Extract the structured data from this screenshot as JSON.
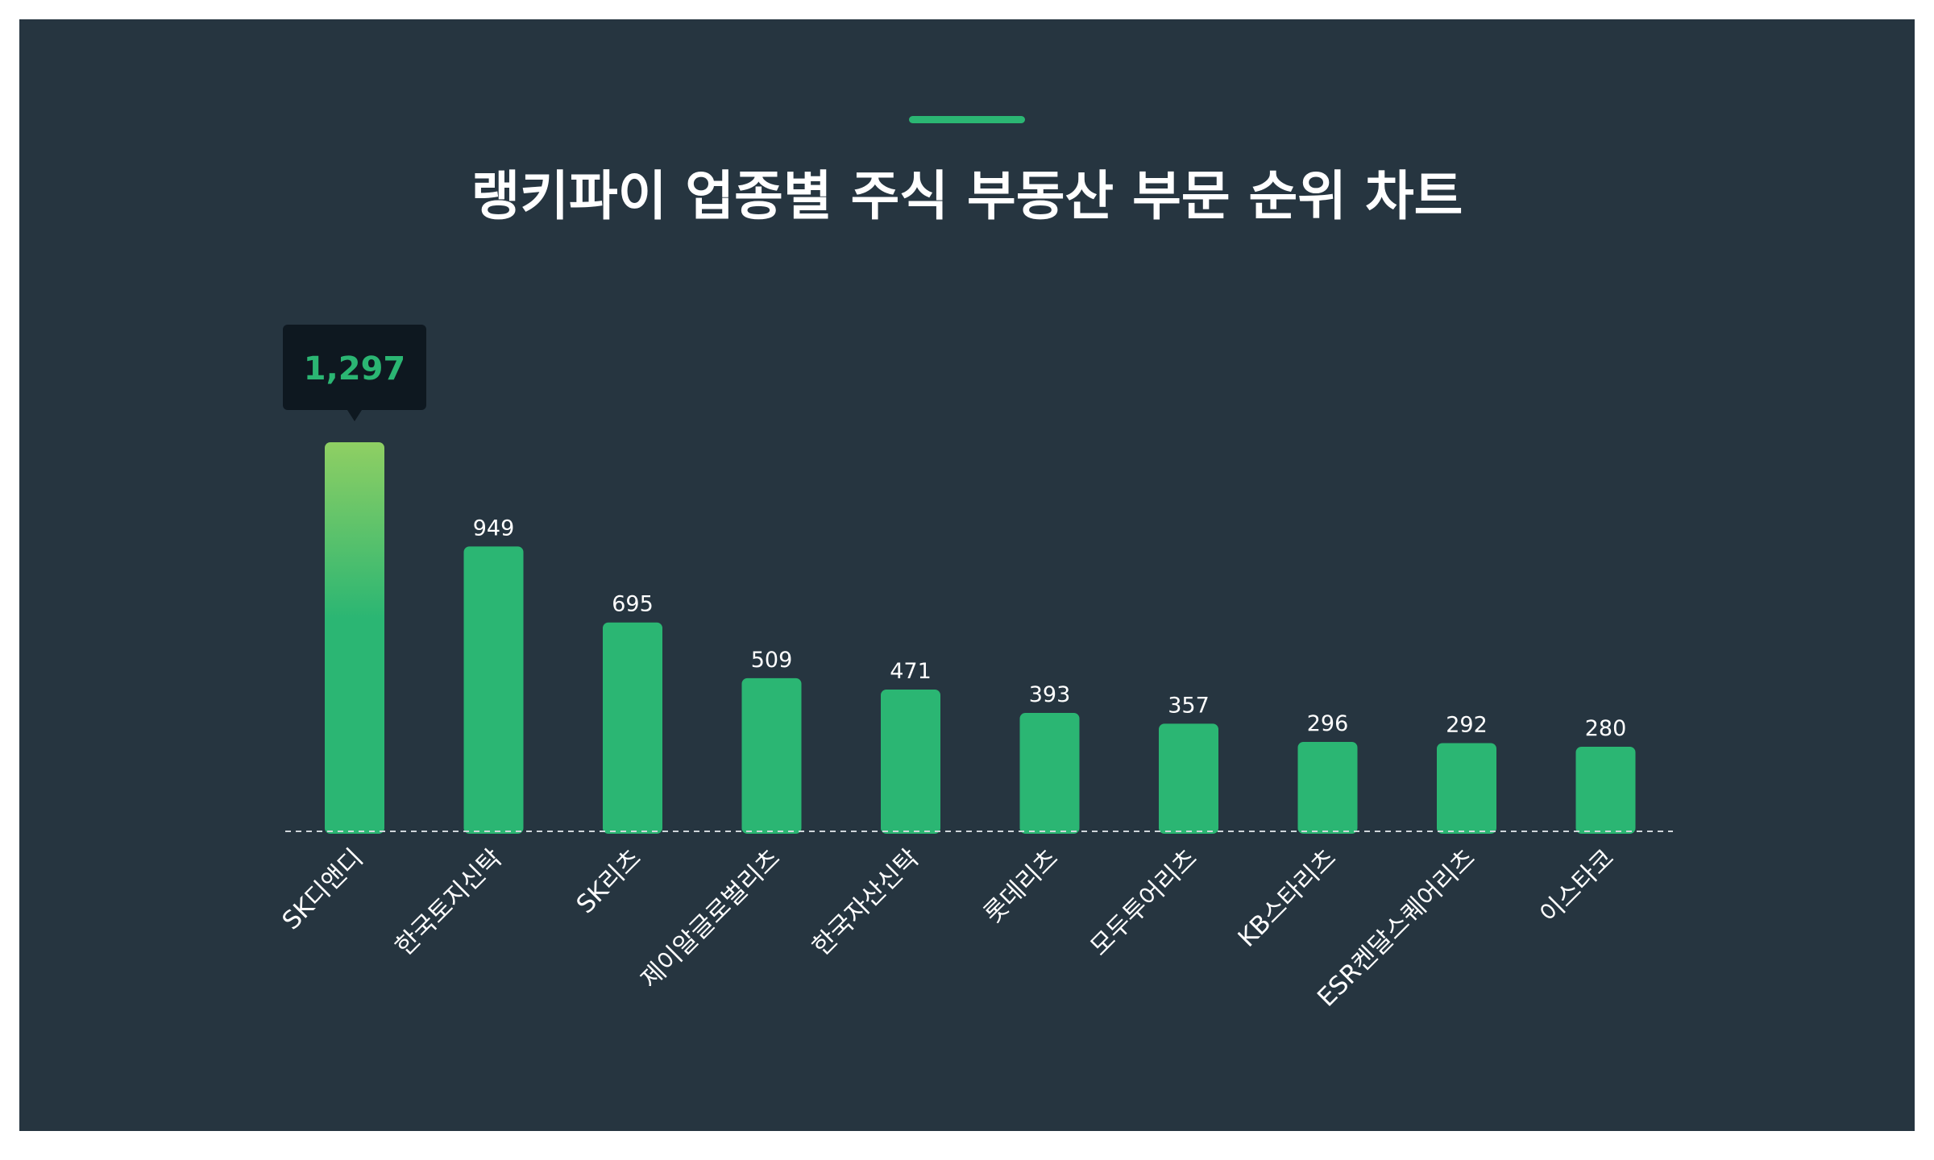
{
  "chart_data": {
    "type": "bar",
    "title": "랭키파이 업종별 주식 부동산 부문 순위 차트",
    "categories": [
      "SK디앤디",
      "한국토지신탁",
      "SK리츠",
      "제이알글로벌리츠",
      "한국자산신탁",
      "롯데리츠",
      "모두투어리츠",
      "KB스타리츠",
      "ESR켄달스퀘어리츠",
      "이스타코"
    ],
    "values": [
      1297,
      949,
      695,
      509,
      471,
      393,
      357,
      296,
      292,
      280
    ],
    "value_labels": [
      "1,297",
      "949",
      "695",
      "509",
      "471",
      "393",
      "357",
      "296",
      "292",
      "280"
    ],
    "highlight_index": 0,
    "ylim": [
      0,
      1297
    ],
    "grid": false,
    "colors": {
      "bar": "#2bb673",
      "highlight_top": "#8fcf63",
      "tooltip_bg": "#0e1820",
      "tooltip_text": "#2bb673",
      "label": "#ffffff",
      "baseline": "#cfd6da"
    }
  }
}
